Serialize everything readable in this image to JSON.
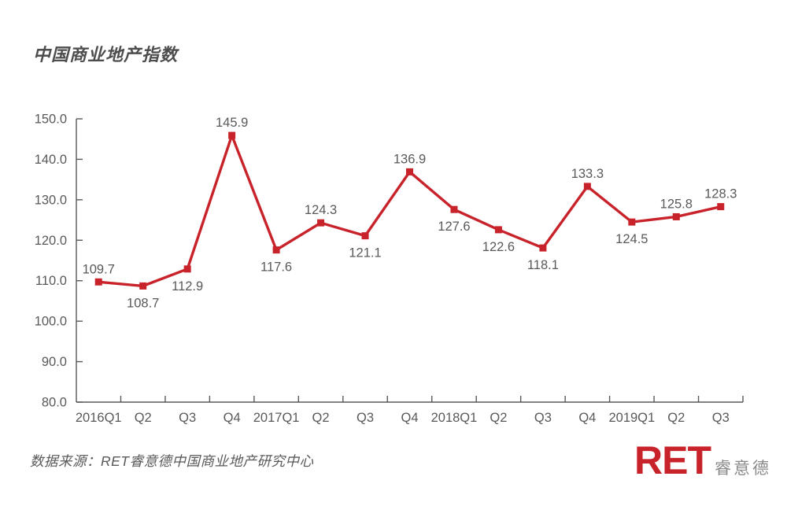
{
  "title": "中国商业地产指数",
  "source_note": "数据来源：RET睿意德中国商业地产研究中心",
  "logo": {
    "main": "RET",
    "suffix": "睿意德"
  },
  "colors": {
    "line": "#c8232b",
    "axis": "#595959",
    "label_text": "#595959",
    "logo_red": "#c8232b",
    "logo_gray": "#8a8a8a"
  },
  "chart_data": {
    "type": "line",
    "title": "中国商业地产指数",
    "categories": [
      "2016Q1",
      "Q2",
      "Q3",
      "Q4",
      "2017Q1",
      "Q2",
      "Q3",
      "Q4",
      "2018Q1",
      "Q2",
      "Q3",
      "Q4",
      "2019Q1",
      "Q2",
      "Q3"
    ],
    "series": [
      {
        "name": "中国商业地产指数",
        "values": [
          109.7,
          108.7,
          112.9,
          145.9,
          117.6,
          124.3,
          121.1,
          136.9,
          127.6,
          122.6,
          118.1,
          133.3,
          124.5,
          125.8,
          128.3
        ]
      }
    ],
    "xlabel": "",
    "ylabel": "",
    "ylim": [
      80,
      150
    ],
    "ytick_step": 10,
    "ytick_labels": [
      "80.0",
      "90.0",
      "100.0",
      "110.0",
      "120.0",
      "130.0",
      "140.0",
      "150.0"
    ],
    "grid": false,
    "legend": "none",
    "marker": "square",
    "data_labels_shown": true,
    "label_positions": [
      "above",
      "below",
      "below",
      "above",
      "below",
      "above",
      "below",
      "above",
      "below",
      "below",
      "below",
      "above",
      "below",
      "above",
      "above"
    ]
  }
}
